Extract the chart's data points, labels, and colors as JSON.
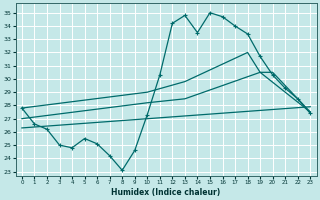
{
  "xlabel": "Humidex (Indice chaleur)",
  "background_color": "#c5e8e8",
  "line_color": "#006b6b",
  "grid_color": "#ffffff",
  "xlim": [
    -0.5,
    23.5
  ],
  "ylim": [
    22.7,
    35.7
  ],
  "yticks": [
    23,
    24,
    25,
    26,
    27,
    28,
    29,
    30,
    31,
    32,
    33,
    34,
    35
  ],
  "xticks": [
    0,
    1,
    2,
    3,
    4,
    5,
    6,
    7,
    8,
    9,
    10,
    11,
    12,
    13,
    14,
    15,
    16,
    17,
    18,
    19,
    20,
    21,
    22,
    23
  ],
  "line_jagged": {
    "x": [
      0,
      1,
      2,
      3,
      4,
      5,
      6,
      7,
      8,
      9,
      10,
      11,
      12,
      13,
      14,
      15,
      16,
      17,
      18,
      19,
      20,
      21,
      22,
      23
    ],
    "y": [
      27.8,
      26.6,
      26.2,
      25.0,
      24.8,
      25.5,
      25.1,
      24.2,
      23.1,
      24.6,
      27.3,
      30.3,
      34.2,
      34.8,
      33.5,
      35.0,
      34.7,
      34.0,
      33.4,
      31.7,
      30.3,
      29.3,
      28.5,
      27.4
    ]
  },
  "line_upper": {
    "x": [
      0,
      10,
      13,
      18,
      19,
      23
    ],
    "y": [
      27.8,
      29.0,
      29.8,
      32.0,
      30.5,
      27.5
    ]
  },
  "line_mid": {
    "x": [
      0,
      10,
      13,
      19,
      20,
      23
    ],
    "y": [
      27.0,
      28.2,
      28.5,
      30.5,
      30.5,
      27.5
    ]
  },
  "line_lower": {
    "x": [
      0,
      23
    ],
    "y": [
      26.3,
      27.9
    ]
  }
}
